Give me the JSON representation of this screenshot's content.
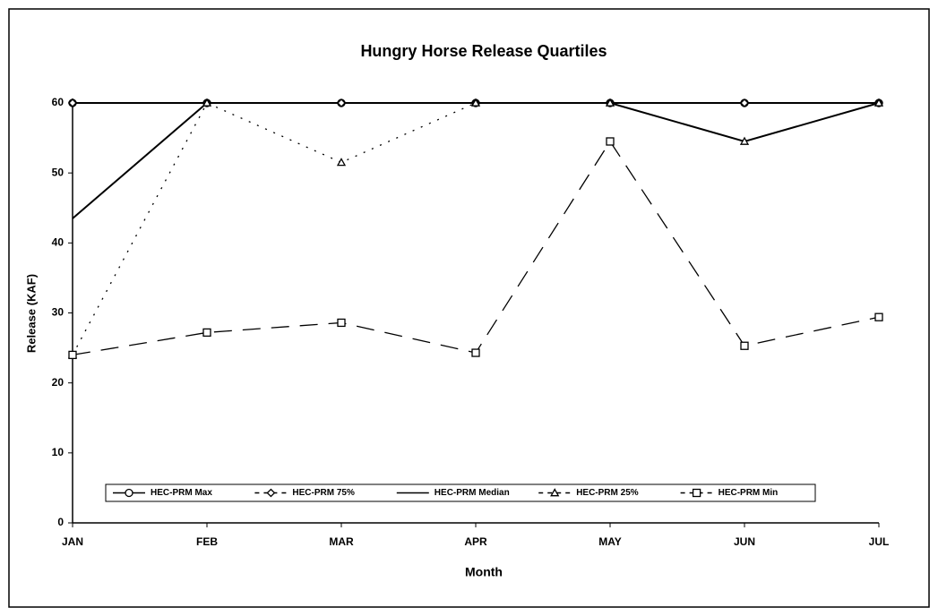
{
  "chart_data": {
    "type": "line",
    "title": "Hungry Horse Release Quartiles",
    "x_label": "Month",
    "y_label": "Release (KAF)",
    "categories": [
      "JAN",
      "FEB",
      "MAR",
      "APR",
      "MAY",
      "JUN",
      "JUL"
    ],
    "ylim": [
      0,
      60
    ],
    "yticks": [
      0,
      10,
      20,
      30,
      40,
      50,
      60
    ],
    "series": [
      {
        "name": "HEC-PRM Max",
        "color": "#000000",
        "marker": "circle",
        "dash": "solid",
        "values": [
          60,
          60,
          60,
          60,
          60,
          60,
          60
        ]
      },
      {
        "name": "HEC-PRM 75%",
        "color": "#000000",
        "marker": "diamond",
        "dash": "dashed",
        "values": [
          60,
          60,
          60,
          60,
          60,
          60,
          60
        ]
      },
      {
        "name": "HEC-PRM Median",
        "color": "#000000",
        "marker": "none",
        "dash": "solid",
        "values": [
          43.5,
          60,
          60,
          60,
          60,
          54.5,
          60
        ]
      },
      {
        "name": "HEC-PRM 25%",
        "color": "#000000",
        "marker": "triangle",
        "dash": "dotted",
        "values": [
          24,
          60,
          51.5,
          60,
          60,
          54.5,
          60
        ]
      },
      {
        "name": "HEC-PRM Min",
        "color": "#000000",
        "marker": "square",
        "dash": "longdash",
        "values": [
          24,
          27.2,
          28.6,
          24.3,
          54.5,
          25.3,
          29.4
        ]
      }
    ]
  }
}
